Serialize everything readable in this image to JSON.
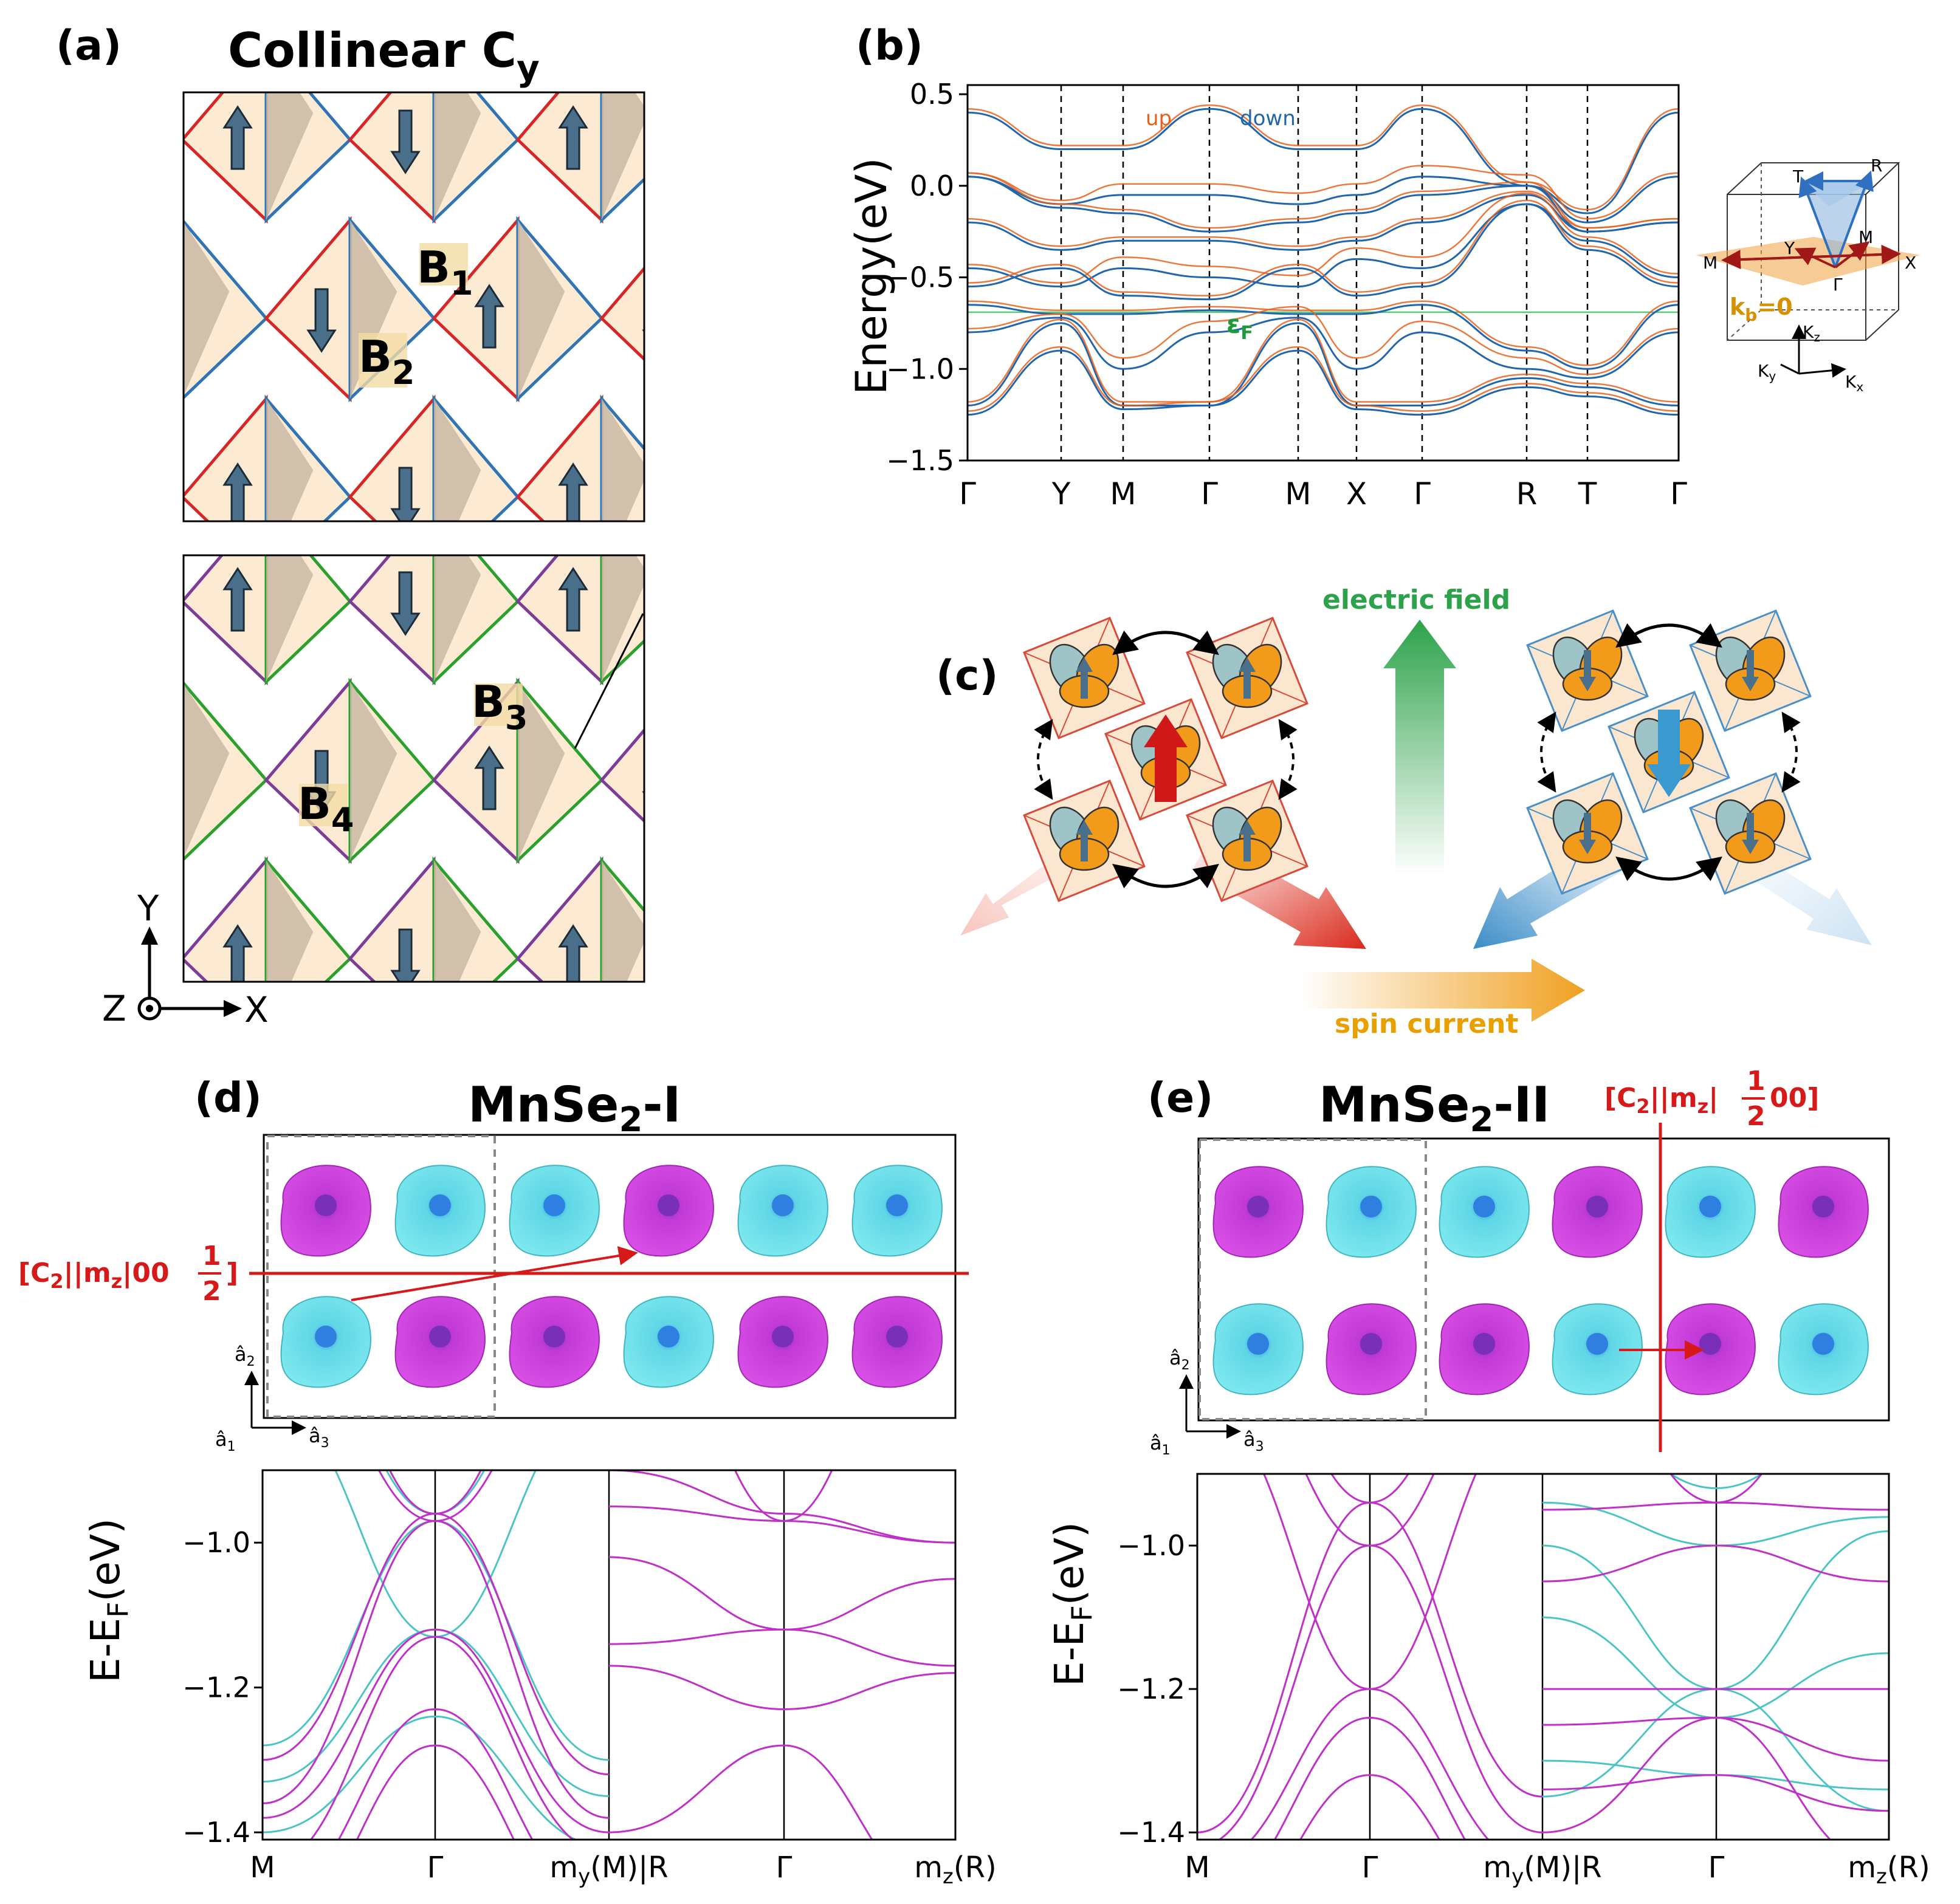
{
  "panels": {
    "a": {
      "tag": "(a)",
      "title_main": "Collinear C",
      "title_sub": "y",
      "sublattices": [
        {
          "name": "B",
          "sub": "1"
        },
        {
          "name": "B",
          "sub": "2"
        },
        {
          "name": "B",
          "sub": "3"
        },
        {
          "name": "B",
          "sub": "4"
        }
      ],
      "axes": {
        "y": "Y",
        "z": "Z",
        "x": "X"
      },
      "colors": {
        "top_a": "#d62728",
        "top_b": "#2f74b5",
        "bot_a": "#7d3c98",
        "bot_b": "#2ca02c",
        "fill": "#fcebd2",
        "shade": "#c9b8a4",
        "arrow": "#4a6f8a"
      }
    },
    "b": {
      "tag": "(b)",
      "ylabel": "Energy(eV)",
      "yticks": [
        "0.5",
        "0.0",
        "−0.5",
        "−1.0",
        "−1.5"
      ],
      "kpath": [
        "Γ",
        "Y",
        "M",
        "Γ",
        "M",
        "X",
        "Γ",
        "R",
        "T",
        "Γ"
      ],
      "legend": {
        "up": "up",
        "down": "down"
      },
      "fermi_label": "ε",
      "fermi_sub": "F",
      "bz": {
        "labels": [
          "T",
          "R",
          "Y",
          "M",
          "M",
          "X",
          "Γ"
        ],
        "plane_main": "k",
        "plane_sub": "b",
        "plane_rest": "=0",
        "k_axes": [
          {
            "k": "K",
            "s": "z"
          },
          {
            "k": "K",
            "s": "y"
          },
          {
            "k": "K",
            "s": "x"
          }
        ]
      }
    },
    "c": {
      "tag": "(c)",
      "electric_field": "electric field",
      "spin_current": "spin current"
    },
    "d": {
      "tag": "(d)",
      "title_main": "MnSe",
      "title_sub": "2",
      "title_rest": "-I",
      "symmetry": {
        "pre": "[C",
        "s1": "2",
        "mid": "||m",
        "s2": "z",
        "post": "|00",
        "num": "1",
        "den": "2",
        "close": "]"
      },
      "lattice": {
        "a2": "â",
        "a2s": "2",
        "a1": "â",
        "a1s": "1",
        "a3": "â",
        "a3s": "3"
      },
      "ylabel": {
        "pre": "E-E",
        "sub": "F",
        "post": "(eV)"
      },
      "yticks": [
        "−1.0",
        "−1.2",
        "−1.4"
      ],
      "xticks": [
        {
          "pre": "M",
          "sub": "",
          "post": ""
        },
        {
          "pre": "Γ",
          "sub": "",
          "post": ""
        },
        {
          "pre": "m",
          "sub": "y",
          "post": "(M)|R"
        },
        {
          "pre": "Γ",
          "sub": "",
          "post": ""
        },
        {
          "pre": "m",
          "sub": "z",
          "post": "(R)"
        }
      ]
    },
    "e": {
      "tag": "(e)",
      "title_main": "MnSe",
      "title_sub": "2",
      "title_rest": "-II",
      "symmetry": {
        "pre": "[C",
        "s1": "2",
        "mid": "||m",
        "s2": "z",
        "post": "|",
        "num": "1",
        "den": "2",
        "close": "00]"
      },
      "lattice": {
        "a2": "â",
        "a2s": "2",
        "a1": "â",
        "a1s": "1",
        "a3": "â",
        "a3s": "3"
      },
      "ylabel": {
        "pre": "E-E",
        "sub": "F",
        "post": "(eV)"
      },
      "yticks": [
        "−1.0",
        "−1.2",
        "−1.4"
      ],
      "xticks": [
        {
          "pre": "M",
          "sub": "",
          "post": ""
        },
        {
          "pre": "Γ",
          "sub": "",
          "post": ""
        },
        {
          "pre": "m",
          "sub": "y",
          "post": "(M)|R"
        },
        {
          "pre": "Γ",
          "sub": "",
          "post": ""
        },
        {
          "pre": "m",
          "sub": "z",
          "post": "(R)"
        }
      ]
    }
  },
  "colors": {
    "band_up": "#e8601c",
    "band_down": "#2166ac",
    "fermi": "#5cc87a",
    "magenta": "#c030c8",
    "cyan": "#4cc4c4",
    "red_label": "#d61a1a",
    "green_label": "#1f9a3a",
    "orange_label": "#e8a000"
  }
}
